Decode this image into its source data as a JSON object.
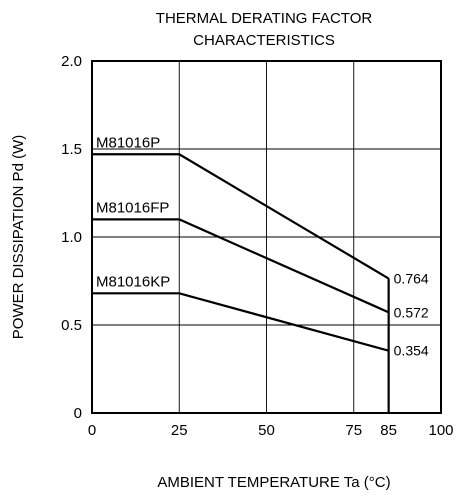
{
  "chart_data": {
    "type": "line",
    "title_lines": [
      "THERMAL DERATING FACTOR",
      "CHARACTERISTICS"
    ],
    "xlabel": "AMBIENT TEMPERATURE  Ta (°C)",
    "ylabel": "POWER DISSIPATION  Pd (W)",
    "xlim": [
      0,
      100
    ],
    "ylim": [
      0,
      2.0
    ],
    "x_ticks": [
      0,
      25,
      50,
      75,
      85,
      100
    ],
    "x_tick_labels": [
      "0",
      "25",
      "50",
      "75",
      "85",
      "100"
    ],
    "y_ticks": [
      0,
      0.5,
      1.0,
      1.5,
      2.0
    ],
    "y_tick_labels": [
      "0",
      "0.5",
      "1.0",
      "1.5",
      "2.0"
    ],
    "x_grid": [
      25,
      50,
      75
    ],
    "y_grid": [
      0.5,
      1.0,
      1.5
    ],
    "grid": true,
    "series": [
      {
        "name": "M81016P",
        "x": [
          0,
          25,
          85
        ],
        "y": [
          1.47,
          1.47,
          0.764
        ],
        "end_label": "0.764"
      },
      {
        "name": "M81016FP",
        "x": [
          0,
          25,
          85
        ],
        "y": [
          1.1,
          1.1,
          0.572
        ],
        "end_label": "0.572"
      },
      {
        "name": "M81016KP",
        "x": [
          0,
          25,
          85
        ],
        "y": [
          0.68,
          0.68,
          0.354
        ],
        "end_label": "0.354"
      }
    ],
    "boundary": {
      "x": 85
    }
  }
}
